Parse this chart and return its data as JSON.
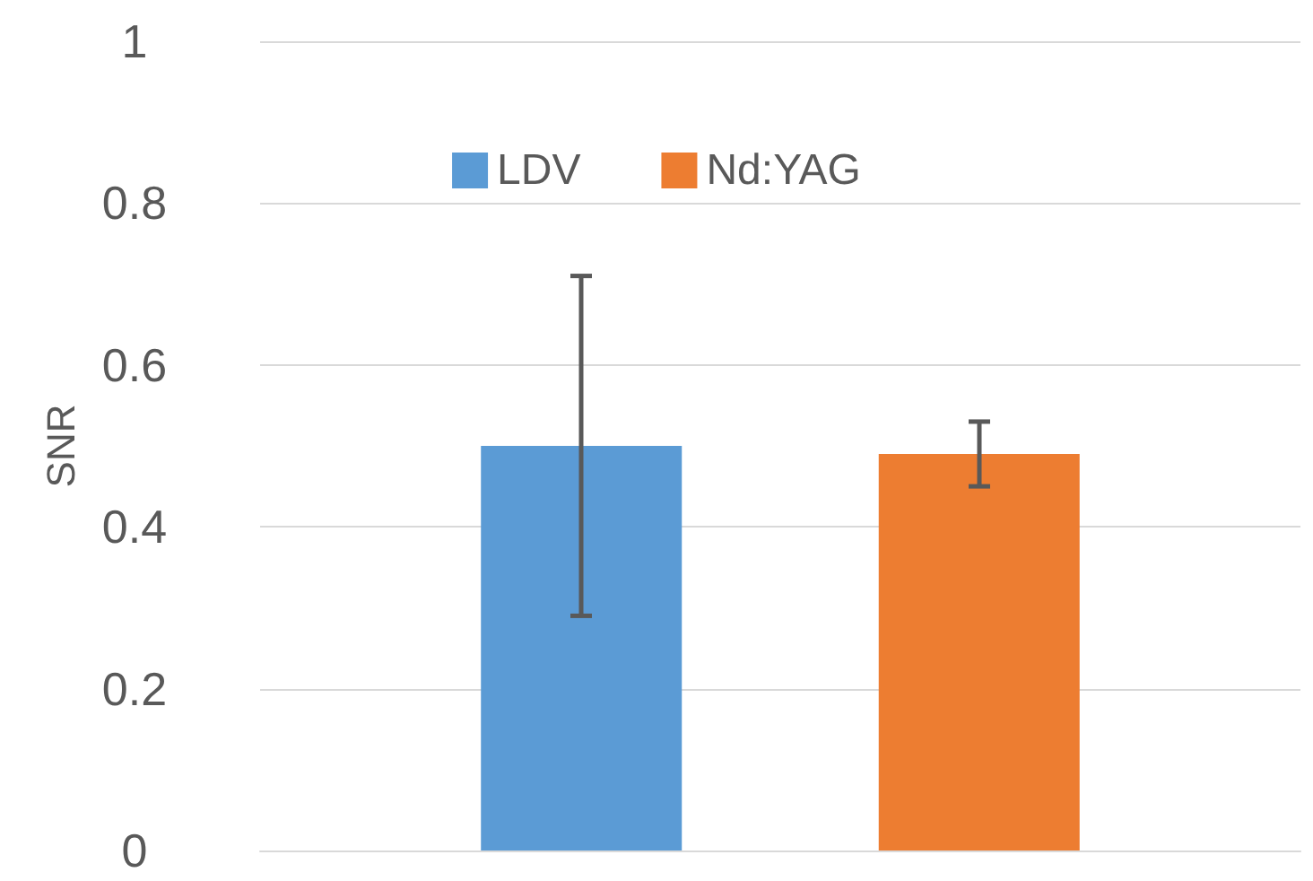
{
  "chart_data": {
    "type": "bar",
    "ylabel": "SNR",
    "categories": [
      null
    ],
    "series": [
      {
        "name": "LDV",
        "color": "#5b9bd5",
        "values": [
          0.5
        ],
        "errors": [
          [
            0.29,
            0.71
          ]
        ]
      },
      {
        "name": "Nd:YAG",
        "color": "#ed7d31",
        "values": [
          0.49
        ],
        "errors": [
          [
            0.45,
            0.53
          ]
        ]
      }
    ],
    "ylim": [
      0,
      1
    ],
    "yticks": [
      0,
      0.2,
      0.4,
      0.6,
      0.8,
      1
    ],
    "grid": "y",
    "legend": "top"
  }
}
